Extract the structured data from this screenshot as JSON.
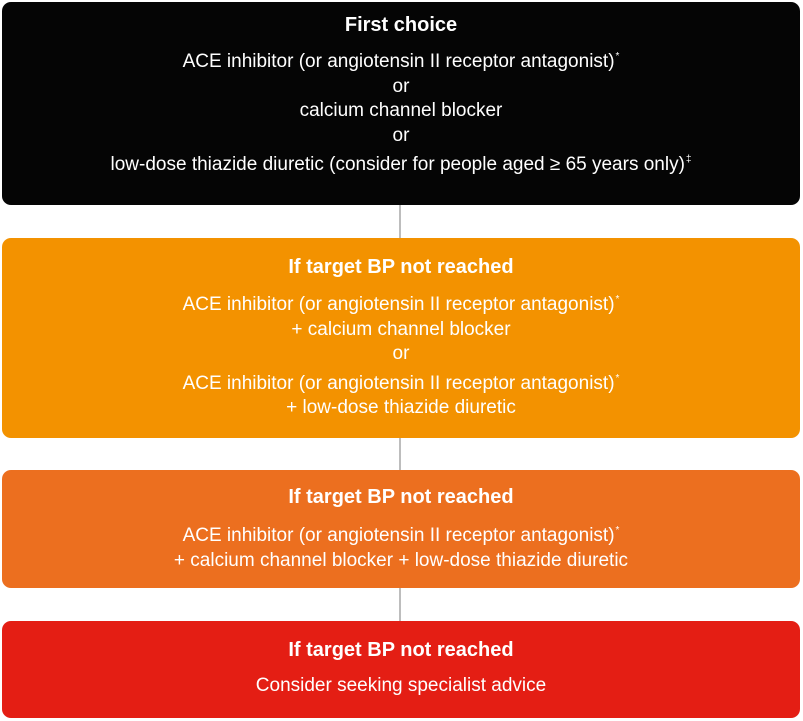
{
  "steps": [
    {
      "title": "First choice",
      "lines": [
        {
          "text": "ACE inhibitor (or angiotensin II receptor antagonist)",
          "mark": "*"
        },
        {
          "text": "or",
          "mark": ""
        },
        {
          "text": "calcium channel blocker",
          "mark": ""
        },
        {
          "text": "or",
          "mark": ""
        },
        {
          "text": "low-dose thiazide diuretic (consider for people aged ≥ 65 years only)",
          "mark": "‡"
        }
      ]
    },
    {
      "title": "If target BP not reached",
      "lines": [
        {
          "text": "ACE inhibitor (or angiotensin II receptor antagonist)",
          "mark": "*"
        },
        {
          "text": "+ calcium channel blocker",
          "mark": ""
        },
        {
          "text": "or",
          "mark": ""
        },
        {
          "text": "ACE inhibitor (or angiotensin II receptor antagonist)",
          "mark": "*"
        },
        {
          "text": "+ low-dose thiazide diuretic",
          "mark": ""
        }
      ]
    },
    {
      "title": "If target BP not reached",
      "lines": [
        {
          "text": "ACE inhibitor (or angiotensin II receptor antagonist)",
          "mark": "*"
        },
        {
          "text": "+ calcium channel blocker + low-dose thiazide diuretic",
          "mark": ""
        }
      ]
    },
    {
      "title": "If target BP not reached",
      "lines": [
        {
          "text": "Consider seeking specialist advice",
          "mark": ""
        }
      ]
    }
  ],
  "colors": {
    "step1": "#050505",
    "step2": "#f39200",
    "step3": "#ec6f1f",
    "step4": "#e41e14",
    "connector": "#bdbdbd",
    "text": "#ffffff"
  }
}
